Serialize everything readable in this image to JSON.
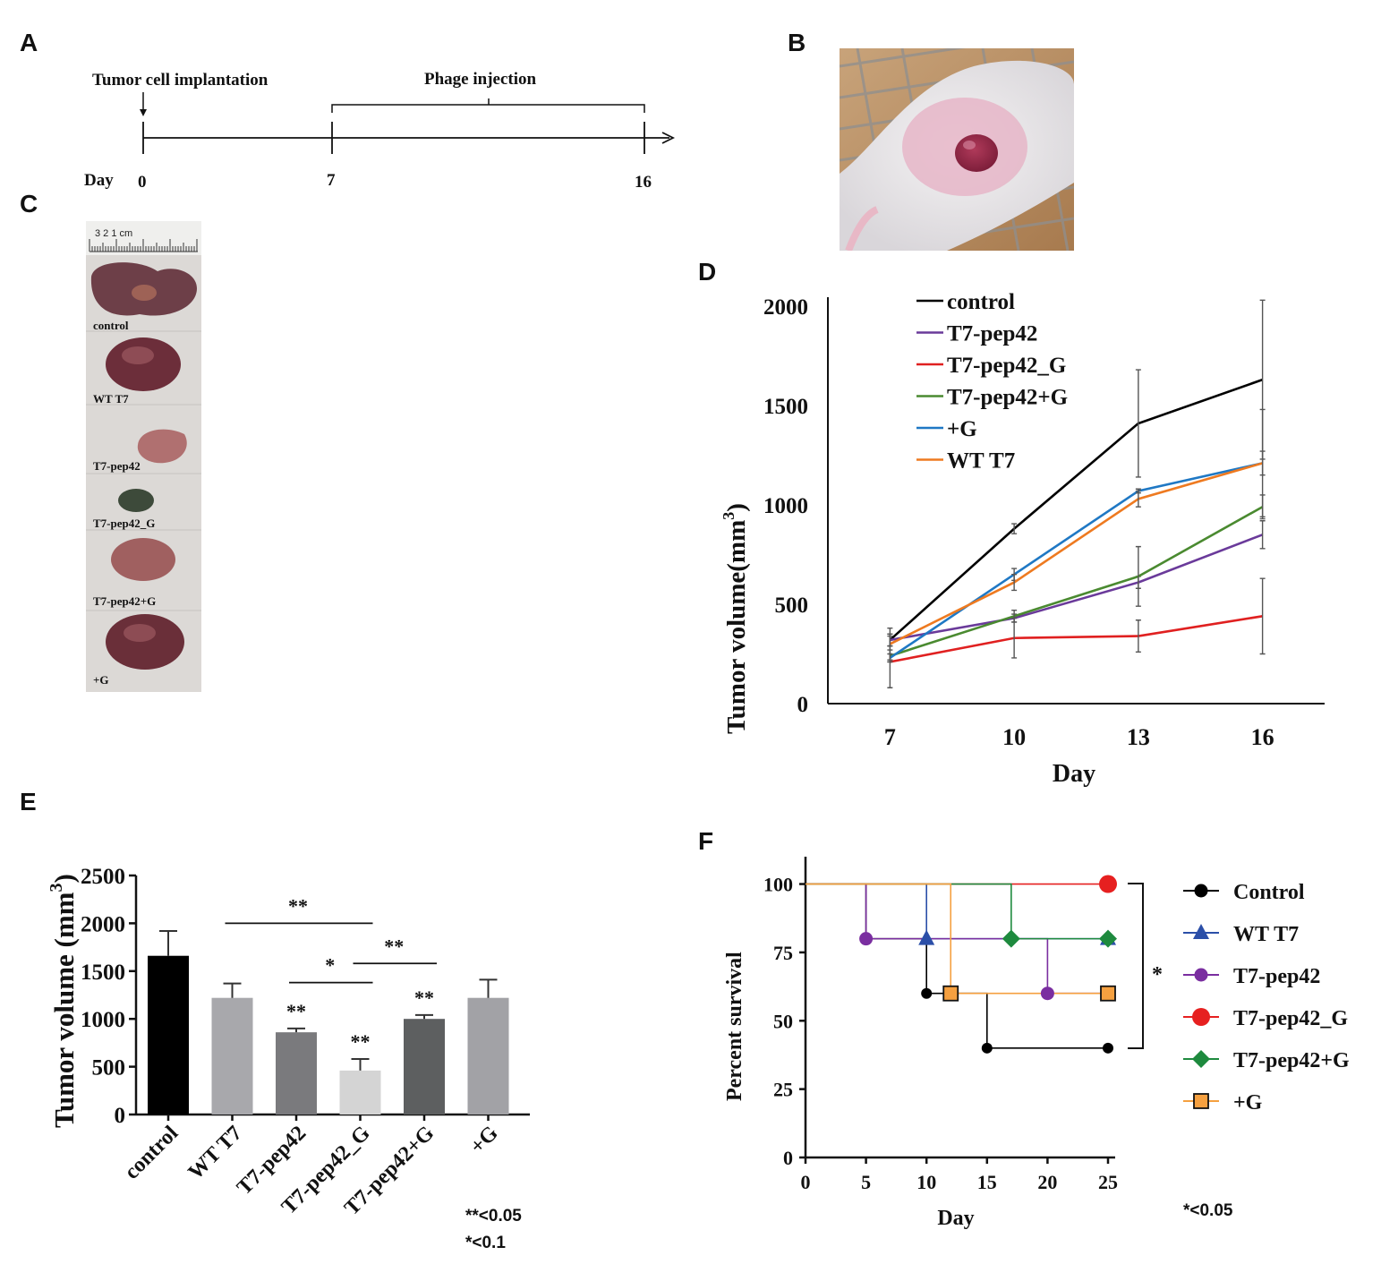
{
  "panel_labels": {
    "a": "A",
    "b": "B",
    "c": "C",
    "d": "D",
    "e": "E",
    "f": "F"
  },
  "timeline": {
    "label_implant": "Tumor cell implantation",
    "label_phage": "Phage injection",
    "day_label": "Day",
    "ticks": [
      "0",
      "7",
      "16"
    ]
  },
  "tumors": {
    "labels": [
      "control",
      "WT T7",
      "T7-pep42",
      "T7-pep42_G",
      "T7-pep42+G",
      "+G"
    ],
    "ruler_text": "3 2 1 cm"
  },
  "colors": {
    "control": "#000000",
    "pep42": "#6a3a9a",
    "pep42_G": "#e02020",
    "pep42plusG": "#4a8a30",
    "plusG": "#1f78c4",
    "wt": "#ee7a20"
  },
  "chart_data": [
    {
      "id": "D",
      "type": "line",
      "title": "",
      "xlabel": "Day",
      "ylabel": "Tumor volume(mm³)",
      "ylabel_main": "Tumor volume(mm",
      "ylabel_sup": "3",
      "ylabel_close": ")",
      "x": [
        7,
        10,
        13,
        16
      ],
      "ylim": [
        0,
        2000
      ],
      "yticks": [
        0,
        500,
        1000,
        1500,
        2000
      ],
      "series": [
        {
          "name": "control",
          "color": "#000000",
          "values": [
            320,
            880,
            1410,
            1630
          ],
          "err": [
            30,
            25,
            270,
            400
          ]
        },
        {
          "name": "T7-pep42",
          "color": "#6a3a9a",
          "values": [
            320,
            430,
            610,
            850
          ],
          "err": [
            30,
            20,
            30,
            70
          ]
        },
        {
          "name": "T7-pep42_G",
          "color": "#e02020",
          "values": [
            210,
            330,
            340,
            440
          ],
          "err": [
            130,
            100,
            80,
            190
          ]
        },
        {
          "name": "T7-pep42+G",
          "color": "#4a8a30",
          "values": [
            240,
            440,
            640,
            990
          ],
          "err": [
            30,
            30,
            150,
            60
          ]
        },
        {
          "name": "+G",
          "color": "#1f78c4",
          "values": [
            230,
            650,
            1070,
            1210
          ],
          "err": [
            20,
            30,
            10,
            60
          ]
        },
        {
          "name": "WT T7",
          "color": "#ee7a20",
          "values": [
            300,
            610,
            1030,
            1210
          ],
          "err": [
            80,
            40,
            40,
            270
          ]
        }
      ]
    },
    {
      "id": "E",
      "type": "bar",
      "categories": [
        "control",
        "WT T7",
        "T7-pep42",
        "T7-pep42_G",
        "T7-pep42+G",
        "+G"
      ],
      "values": [
        1660,
        1220,
        860,
        460,
        1000,
        1220
      ],
      "errors": [
        260,
        150,
        40,
        120,
        40,
        190
      ],
      "bar_colors": [
        "#000000",
        "#a8a8ac",
        "#7a7a7d",
        "#d4d4d4",
        "#5d5f60",
        "#a2a2a6"
      ],
      "ylabel": "Tumor volume (mm³)",
      "ylabel_main": "Tumor volume (mm",
      "ylabel_sup": "3",
      "ylabel_close": ")",
      "ylim": [
        0,
        2500
      ],
      "yticks": [
        0,
        500,
        1000,
        1500,
        2000,
        2500
      ],
      "bar_annotations": [
        "",
        "",
        "**",
        "**",
        "**",
        ""
      ],
      "comparisons": [
        {
          "from": 1,
          "to": 3,
          "level": 2000,
          "label": "**"
        },
        {
          "from": 2,
          "to": 3,
          "level": 1380,
          "label": "*"
        },
        {
          "from": 3,
          "to": 4,
          "level": 1580,
          "label": "**"
        }
      ],
      "legend": [
        "**<0.05",
        "*<0.1"
      ]
    },
    {
      "id": "F",
      "type": "line",
      "subtype": "survival-step",
      "xlabel": "Day",
      "ylabel": "Percent survival",
      "xlim": [
        0,
        25
      ],
      "ylim": [
        0,
        100
      ],
      "xticks": [
        0,
        5,
        10,
        15,
        20,
        25
      ],
      "yticks": [
        0,
        25,
        50,
        75,
        100
      ],
      "series": [
        {
          "name": "Control",
          "color": "#000000",
          "marker": "circle-small",
          "steps": [
            [
              0,
              100
            ],
            [
              5,
              80
            ],
            [
              10,
              60
            ],
            [
              15,
              40
            ],
            [
              25,
              40
            ]
          ]
        },
        {
          "name": "WT T7",
          "color": "#2b4fa8",
          "marker": "triangle",
          "steps": [
            [
              0,
              100
            ],
            [
              10,
              80
            ],
            [
              25,
              80
            ]
          ]
        },
        {
          "name": "T7-pep42",
          "color": "#7a2ea0",
          "marker": "circle",
          "steps": [
            [
              0,
              100
            ],
            [
              5,
              80
            ],
            [
              20,
              60
            ],
            [
              25,
              60
            ]
          ]
        },
        {
          "name": "T7-pep42_G",
          "color": "#e62020",
          "marker": "circle-large",
          "steps": [
            [
              0,
              100
            ],
            [
              25,
              100
            ]
          ]
        },
        {
          "name": "T7-pep42+G",
          "color": "#1e8a3e",
          "marker": "diamond",
          "steps": [
            [
              0,
              100
            ],
            [
              17,
              80
            ],
            [
              25,
              80
            ]
          ]
        },
        {
          "name": "+G",
          "color": "#f5a040",
          "marker": "square",
          "steps": [
            [
              0,
              100
            ],
            [
              12,
              60
            ],
            [
              25,
              60
            ]
          ]
        }
      ],
      "significance": "*",
      "note": "*<0.05"
    }
  ]
}
